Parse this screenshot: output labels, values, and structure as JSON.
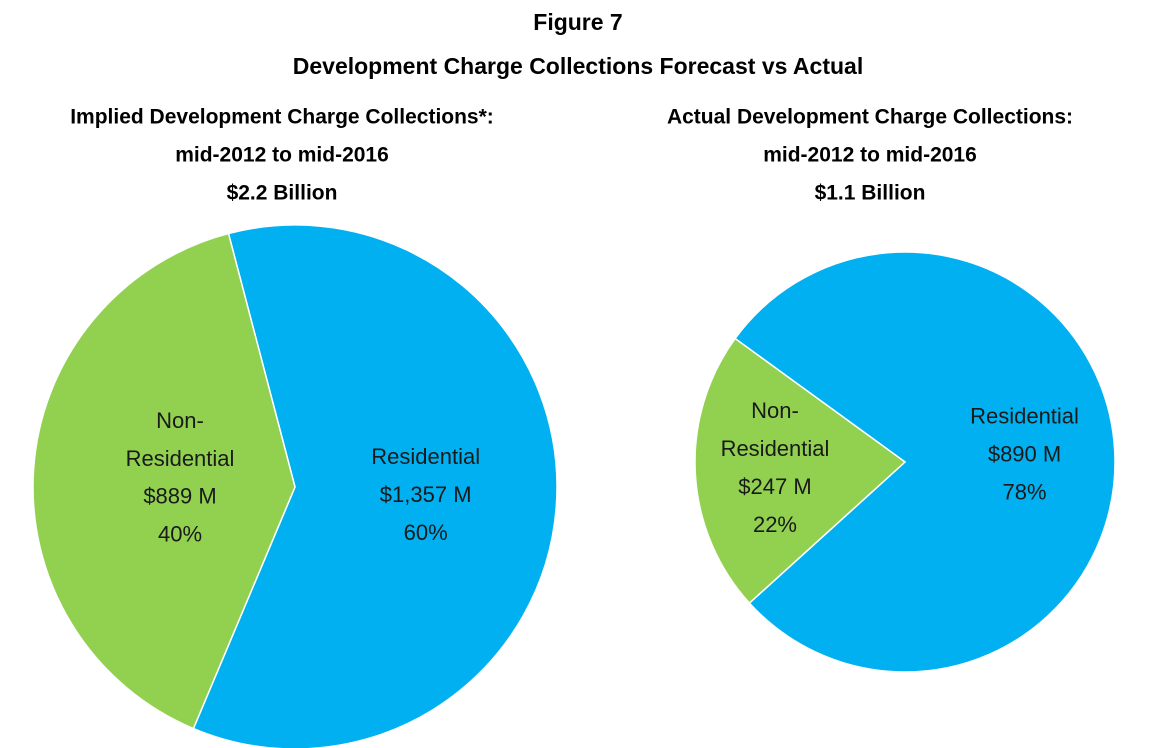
{
  "figure": {
    "title": "Figure 7",
    "subtitle": "Development Charge Collections Forecast vs Actual"
  },
  "chart_data": [
    {
      "type": "pie",
      "title": "Implied Development Charge Collections*:",
      "subtitle": "mid-2012 to mid-2016",
      "total_label": "$2.2 Billion",
      "categories": [
        "Non-Residential",
        "Residential"
      ],
      "colors": [
        "#92d050",
        "#00b0f0"
      ],
      "values": [
        889,
        1357
      ],
      "value_labels": [
        "$889 M",
        "$1,357 M"
      ],
      "shares": [
        40,
        60
      ],
      "share_labels": [
        "40%",
        "60%"
      ]
    },
    {
      "type": "pie",
      "title": "Actual Development Charge Collections:",
      "subtitle": "mid-2012 to mid-2016",
      "total_label": "$1.1 Billion",
      "categories": [
        "Non-Residential",
        "Residential"
      ],
      "colors": [
        "#92d050",
        "#00b0f0"
      ],
      "values": [
        247,
        890
      ],
      "value_labels": [
        "$247 M",
        "$890 M"
      ],
      "shares": [
        22,
        78
      ],
      "share_labels": [
        "22%",
        "78%"
      ]
    }
  ]
}
